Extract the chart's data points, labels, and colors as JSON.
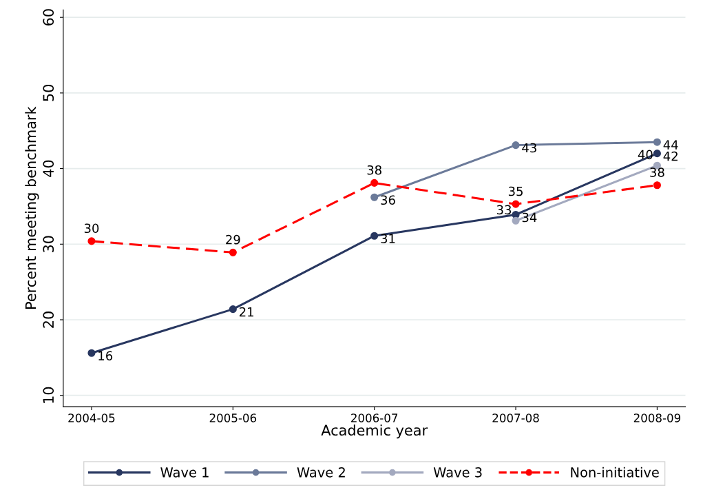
{
  "chart_data": {
    "type": "line",
    "xlabel": "Academic year",
    "ylabel": "Percent meeting benchmark",
    "categories": [
      "2004-05",
      "2005-06",
      "2006-07",
      "2007-08",
      "2008-09"
    ],
    "series": [
      {
        "name": "Wave 1",
        "color": "#283760",
        "values": [
          15.6,
          21.4,
          31.1,
          33.9,
          42.0
        ],
        "value_labels": [
          "16",
          "21",
          "31",
          "34",
          "42"
        ]
      },
      {
        "name": "Wave 2",
        "color": "#6b7a99",
        "values": [
          null,
          null,
          36.2,
          43.1,
          43.5
        ],
        "value_labels": [
          null,
          null,
          "36",
          "43",
          "44"
        ]
      },
      {
        "name": "Wave 3",
        "color": "#a3a9bf",
        "values": [
          null,
          null,
          null,
          33.1,
          40.4
        ],
        "value_labels": [
          null,
          null,
          null,
          "33",
          "40"
        ]
      },
      {
        "name": "Non-initiative",
        "color": "#ff0000",
        "values": [
          30.4,
          28.9,
          38.1,
          35.3,
          37.8
        ],
        "value_labels": [
          "30",
          "29",
          "38",
          "35",
          "38"
        ],
        "line_style": "dashed"
      }
    ],
    "ylim": [
      8.5,
      61
    ],
    "yticks": [
      10,
      20,
      30,
      40,
      50,
      60
    ],
    "grid": "y",
    "legend": "bottom",
    "marker": "circle"
  }
}
